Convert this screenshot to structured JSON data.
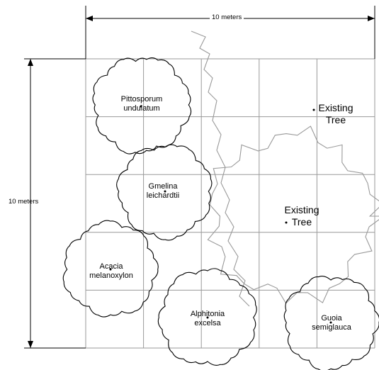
{
  "dimensions": {
    "width_label": "10 meters",
    "height_label": "10 meters"
  },
  "grid": {
    "columns": 5,
    "rows": 5
  },
  "trees": [
    {
      "id": "pittosporum",
      "label": "Pittosporum undulatum",
      "label_lines": [
        "Pittosporum",
        "undulatum"
      ],
      "type": "planted"
    },
    {
      "id": "gmelina",
      "label": "Gmelina leichardtii",
      "label_lines": [
        "Gmelina",
        "leichardtii"
      ],
      "type": "planted"
    },
    {
      "id": "acacia",
      "label": "Acacia melanoxylon",
      "label_lines": [
        "Acacia",
        "melanoxylon"
      ],
      "type": "planted"
    },
    {
      "id": "alphitonia",
      "label": "Alphitonia excelsa",
      "label_lines": [
        "Alphitonia",
        "excelsa"
      ],
      "type": "planted"
    },
    {
      "id": "guoia",
      "label": "Guoia semiglauca",
      "label_lines": [
        "Guoia",
        "semiglauca"
      ],
      "type": "planted"
    },
    {
      "id": "existing-1",
      "label": "Existing Tree",
      "label_lines": [
        "Existing",
        "Tree"
      ],
      "type": "existing"
    },
    {
      "id": "existing-2",
      "label": "Existing Tree",
      "label_lines": [
        "Existing",
        "Tree"
      ],
      "type": "existing"
    }
  ]
}
